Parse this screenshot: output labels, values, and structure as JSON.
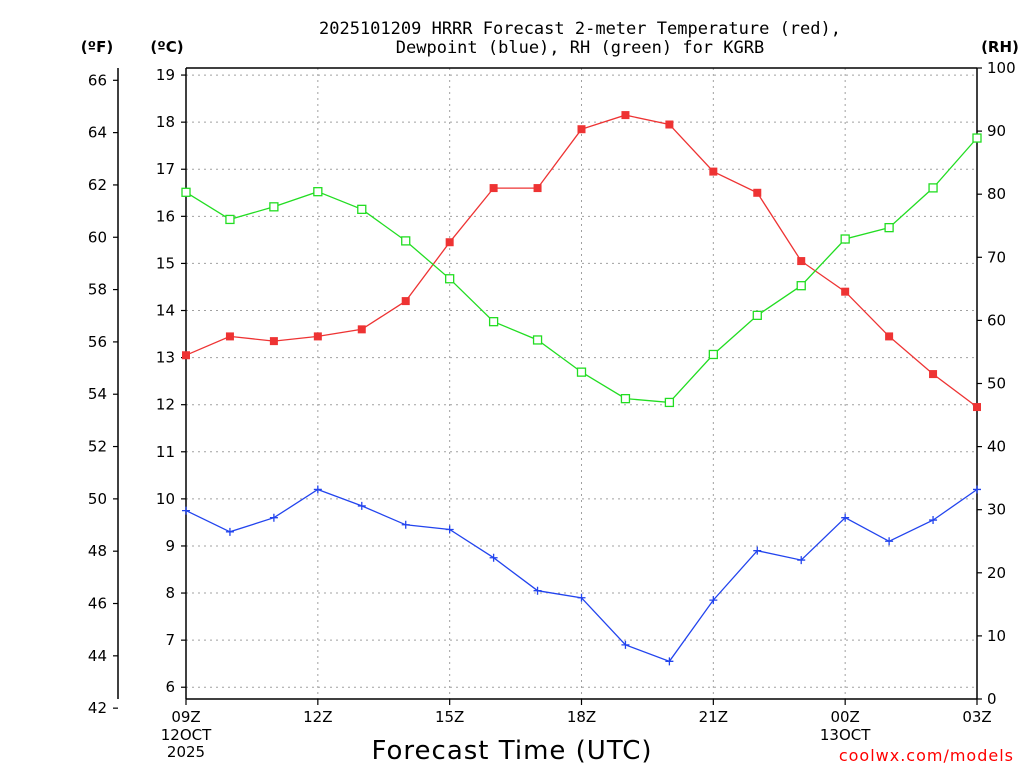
{
  "chart_data": {
    "type": "line",
    "title_line1": "2025101209 HRRR Forecast 2-meter Temperature (red),",
    "title_line2": "Dewpoint (blue), RH (green) for KGRB",
    "xlabel": "Forecast Time (UTC)",
    "credit": "coolwx.com/models",
    "units": {
      "left_outer": "(ºF)",
      "left_inner": "(ºC)",
      "right": "(RH)"
    },
    "x_hours": [
      9,
      10,
      11,
      12,
      13,
      14,
      15,
      16,
      17,
      18,
      19,
      20,
      21,
      22,
      23,
      24,
      25,
      26,
      27
    ],
    "x_ticks": [
      {
        "hour": 9,
        "label": "09Z",
        "sub1": "12OCT",
        "sub2": "2025"
      },
      {
        "hour": 12,
        "label": "12Z",
        "sub1": "",
        "sub2": ""
      },
      {
        "hour": 15,
        "label": "15Z",
        "sub1": "",
        "sub2": ""
      },
      {
        "hour": 18,
        "label": "18Z",
        "sub1": "",
        "sub2": ""
      },
      {
        "hour": 21,
        "label": "21Z",
        "sub1": "",
        "sub2": ""
      },
      {
        "hour": 24,
        "label": "00Z",
        "sub1": "13OCT",
        "sub2": ""
      },
      {
        "hour": 27,
        "label": "03Z",
        "sub1": "",
        "sub2": ""
      }
    ],
    "y_celsius": {
      "min": 5.75,
      "max": 19.15,
      "ticks": [
        6,
        7,
        8,
        9,
        10,
        11,
        12,
        13,
        14,
        15,
        16,
        17,
        18,
        19
      ]
    },
    "y_fahrenheit": {
      "ticks": [
        42,
        44,
        46,
        48,
        50,
        52,
        54,
        56,
        58,
        60,
        62,
        64,
        66
      ]
    },
    "y_rh": {
      "min": 0,
      "max": 100,
      "ticks": [
        0,
        10,
        20,
        30,
        40,
        50,
        60,
        70,
        80,
        90,
        100
      ]
    },
    "series": [
      {
        "name": "Temperature",
        "axis": "celsius",
        "color": "#ee3333",
        "marker": "filled-square",
        "values": [
          13.05,
          13.45,
          13.35,
          13.45,
          13.6,
          14.2,
          15.45,
          16.6,
          16.6,
          17.85,
          18.15,
          17.95,
          16.95,
          16.5,
          15.05,
          14.4,
          13.45,
          12.65,
          11.95
        ]
      },
      {
        "name": "Dewpoint",
        "axis": "celsius",
        "color": "#2244ee",
        "marker": "plus",
        "values": [
          9.75,
          9.3,
          9.6,
          10.2,
          9.85,
          9.45,
          9.35,
          8.75,
          8.05,
          7.9,
          6.9,
          6.55,
          7.85,
          8.9,
          8.7,
          9.6,
          9.1,
          9.55,
          10.2
        ]
      },
      {
        "name": "RH",
        "axis": "rh",
        "color": "#22dd22",
        "marker": "open-square",
        "values": [
          80.3,
          76.0,
          78.0,
          80.4,
          77.6,
          72.6,
          66.6,
          59.8,
          56.9,
          51.8,
          47.6,
          47.0,
          54.6,
          60.8,
          65.5,
          72.9,
          74.7,
          81.0,
          88.9
        ]
      }
    ]
  }
}
